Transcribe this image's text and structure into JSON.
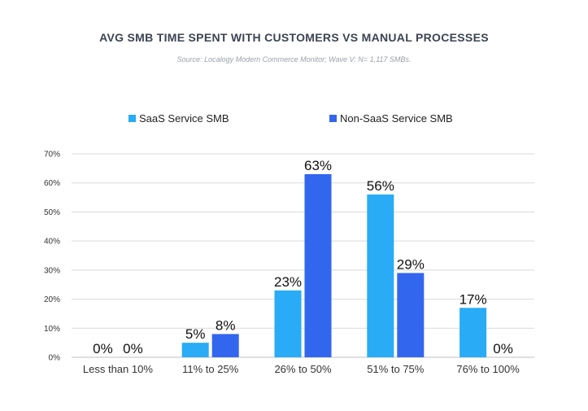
{
  "chart_data": {
    "type": "bar",
    "title": "AVG SMB TIME SPENT WITH CUSTOMERS VS MANUAL PROCESSES",
    "subtitle": "Source: Localogy Modern Commerce Monitor; Wave V: N= 1,117 SMBs.",
    "categories": [
      "Less than 10%",
      "11% to 25%",
      "26% to 50%",
      "51% to 75%",
      "76% to 100%"
    ],
    "series": [
      {
        "name": "SaaS Service SMB",
        "color": "#29abf6",
        "values": [
          0,
          5,
          23,
          56,
          17
        ],
        "labels": [
          "0%",
          "5%",
          "23%",
          "56%",
          "17%"
        ]
      },
      {
        "name": "Non-SaaS Service SMB",
        "color": "#3366ee",
        "values": [
          0,
          8,
          63,
          29,
          0
        ],
        "labels": [
          "0%",
          "8%",
          "63%",
          "29%",
          "0%"
        ]
      }
    ],
    "yticks": [
      "0%",
      "10%",
      "20%",
      "30%",
      "40%",
      "50%",
      "60%",
      "70%"
    ],
    "ylim": [
      0,
      70
    ],
    "legend_position": "top",
    "grid": true
  }
}
